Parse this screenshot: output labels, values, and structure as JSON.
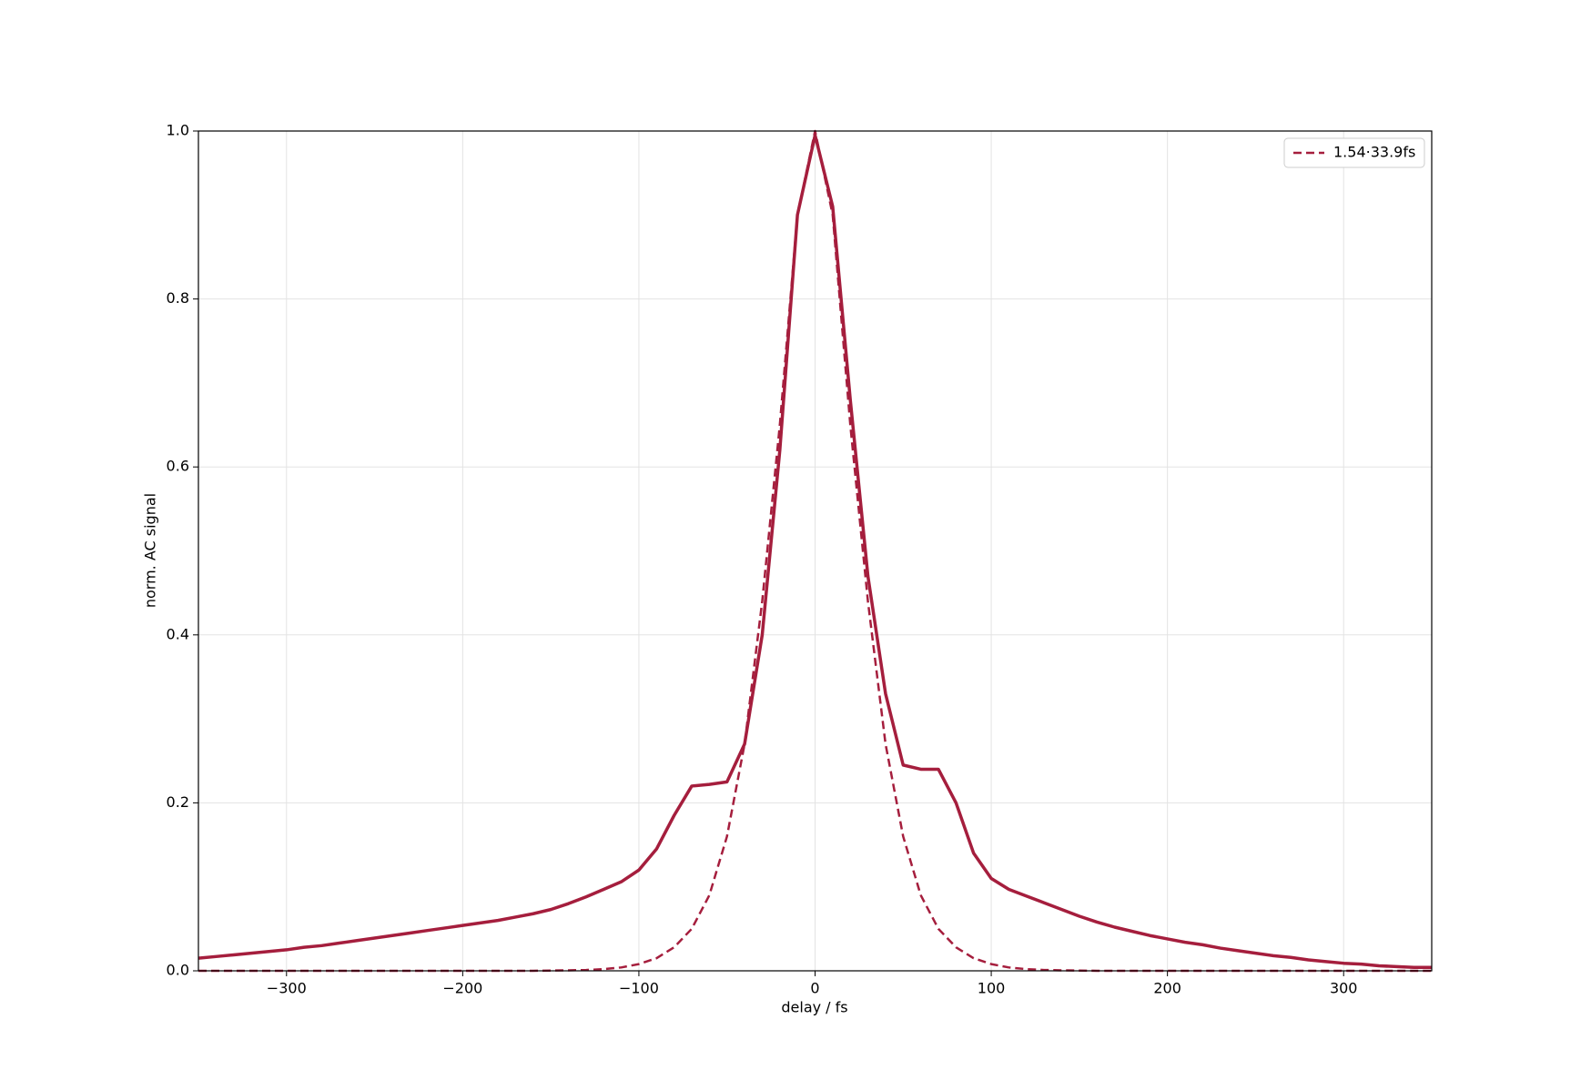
{
  "chart_data": {
    "type": "line",
    "xlabel": "delay / fs",
    "ylabel": "norm. AC signal",
    "x": [
      -350,
      -340,
      -330,
      -320,
      -310,
      -300,
      -290,
      -280,
      -270,
      -260,
      -250,
      -240,
      -230,
      -220,
      -210,
      -200,
      -190,
      -180,
      -170,
      -160,
      -150,
      -140,
      -130,
      -120,
      -110,
      -100,
      -90,
      -80,
      -70,
      -60,
      -50,
      -40,
      -30,
      -20,
      -10,
      0,
      10,
      20,
      30,
      40,
      50,
      60,
      70,
      80,
      90,
      100,
      110,
      120,
      130,
      140,
      150,
      160,
      170,
      180,
      190,
      200,
      210,
      220,
      230,
      240,
      250,
      260,
      270,
      280,
      290,
      300,
      310,
      320,
      330,
      340,
      350
    ],
    "series": [
      {
        "color": "#a51e3d",
        "linestyle": "solid",
        "values": [
          0.015,
          0.017,
          0.019,
          0.021,
          0.023,
          0.025,
          0.028,
          0.03,
          0.033,
          0.036,
          0.039,
          0.042,
          0.045,
          0.048,
          0.051,
          0.054,
          0.057,
          0.06,
          0.064,
          0.068,
          0.073,
          0.08,
          0.088,
          0.097,
          0.106,
          0.12,
          0.145,
          0.185,
          0.22,
          0.222,
          0.225,
          0.27,
          0.4,
          0.62,
          0.9,
          0.995,
          0.91,
          0.68,
          0.47,
          0.33,
          0.245,
          0.24,
          0.24,
          0.2,
          0.14,
          0.11,
          0.097,
          0.089,
          0.081,
          0.073,
          0.065,
          0.058,
          0.052,
          0.047,
          0.042,
          0.038,
          0.034,
          0.031,
          0.027,
          0.024,
          0.021,
          0.018,
          0.016,
          0.013,
          0.011,
          0.009,
          0.008,
          0.006,
          0.005,
          0.004,
          0.004
        ]
      },
      {
        "name": "1.54·33.9fs",
        "color": "#a51e3d",
        "linestyle": "dashed",
        "values": [
          0,
          0,
          0,
          0,
          0,
          0,
          0,
          0,
          0,
          0,
          0,
          0,
          0,
          0,
          0,
          0,
          0,
          0,
          0,
          0,
          0.0003,
          0.0006,
          0.001,
          0.002,
          0.004,
          0.008,
          0.015,
          0.028,
          0.05,
          0.09,
          0.16,
          0.27,
          0.44,
          0.65,
          0.9,
          1.0,
          0.9,
          0.65,
          0.44,
          0.27,
          0.16,
          0.09,
          0.05,
          0.028,
          0.015,
          0.008,
          0.004,
          0.002,
          0.001,
          0.0006,
          0.0003,
          0,
          0,
          0,
          0,
          0,
          0,
          0,
          0,
          0,
          0,
          0,
          0,
          0,
          0,
          0,
          0,
          0,
          0,
          0,
          0
        ]
      }
    ],
    "xlim": [
      -350,
      350
    ],
    "xticks": [
      {
        "value": -300,
        "label": "−300"
      },
      {
        "value": -200,
        "label": "−200"
      },
      {
        "value": -100,
        "label": "−100"
      },
      0,
      100,
      200,
      300
    ],
    "ylim": [
      0,
      1
    ],
    "yticks": [
      {
        "value": 0,
        "label": "0.0"
      },
      0.2,
      0.4,
      0.6,
      0.8,
      {
        "value": 1,
        "label": "1.0"
      }
    ],
    "grid": true,
    "legend": "upper right"
  }
}
